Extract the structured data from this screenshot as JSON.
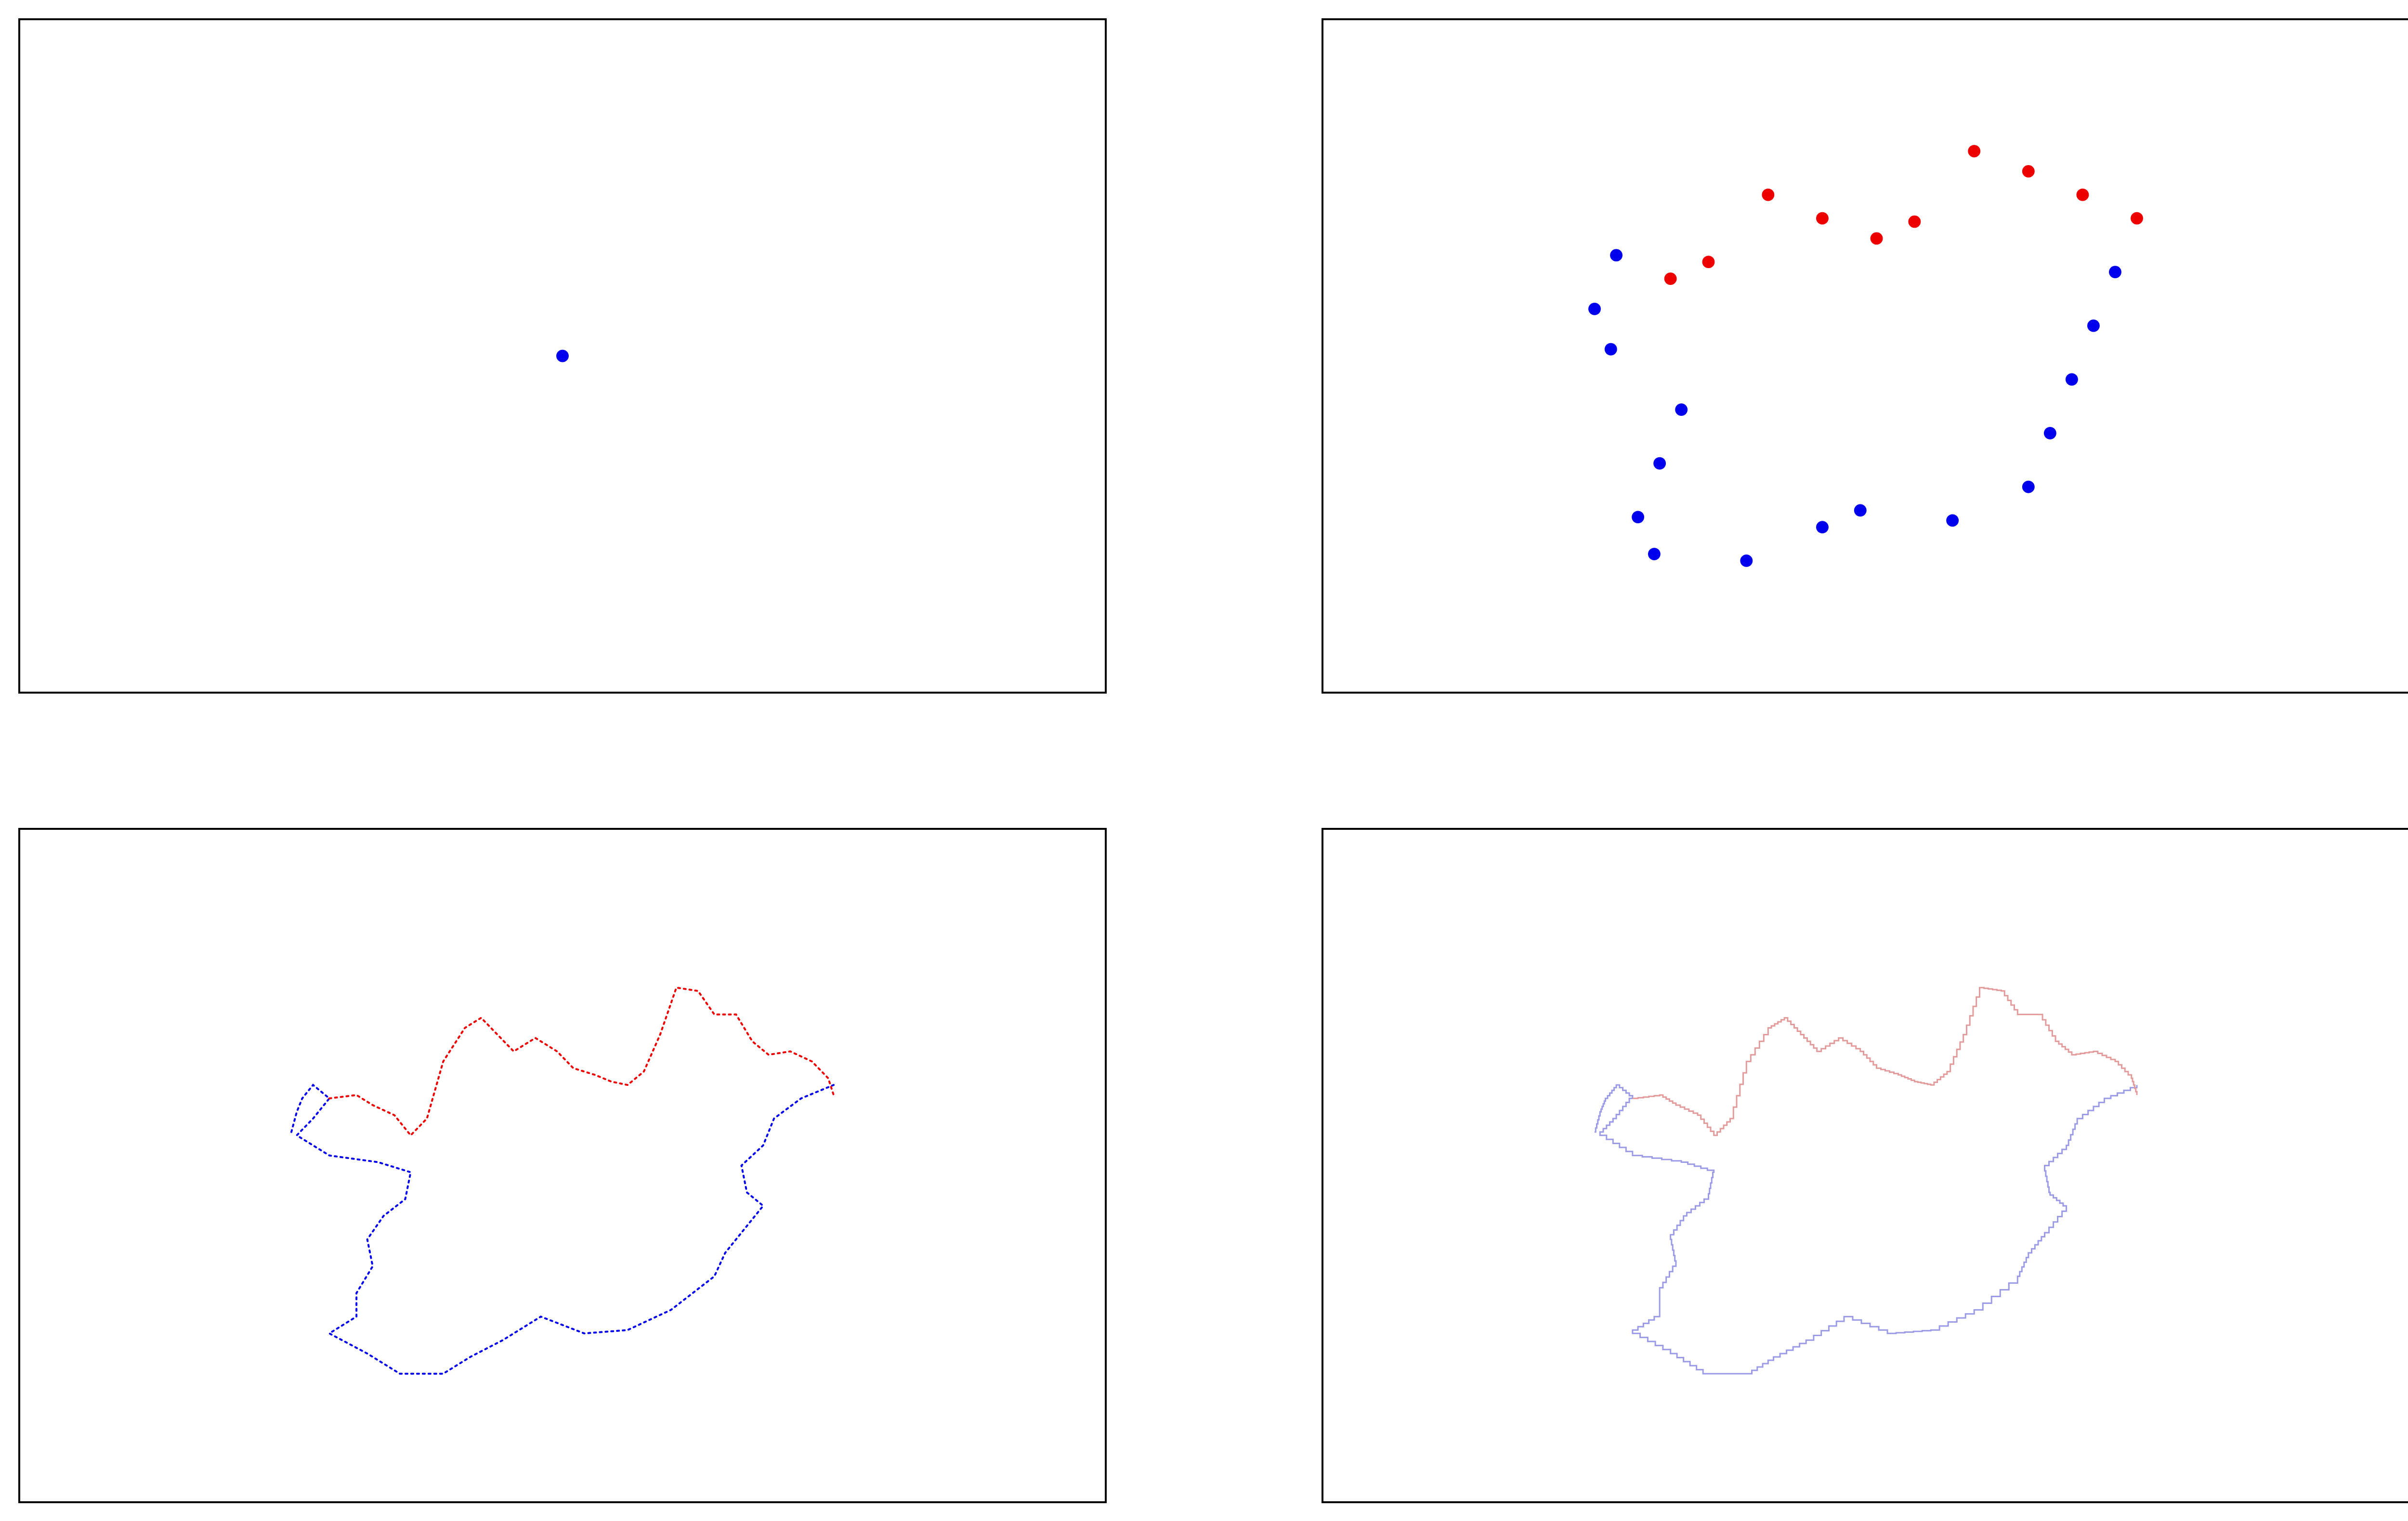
{
  "colors": {
    "blue": "#0000ee",
    "red": "#ee0000",
    "blue_light": "#9a9ae6",
    "red_light": "#e39a9a",
    "frame": "#000000"
  },
  "chart_data": [
    {
      "type": "scatter",
      "xlim": [
        0,
        1
      ],
      "ylim": [
        0,
        1
      ],
      "grid": false,
      "axes_ticks": false,
      "series": [
        {
          "color": "blue",
          "points": [
            [
              0.5,
              0.5
            ]
          ]
        }
      ]
    },
    {
      "type": "scatter",
      "xlim": [
        0,
        1
      ],
      "ylim": [
        0,
        1
      ],
      "grid": false,
      "axes_ticks": false,
      "series": [
        {
          "color": "blue",
          "points": [
            [
              0.27,
              0.65
            ],
            [
              0.25,
              0.57
            ],
            [
              0.265,
              0.51
            ],
            [
              0.33,
              0.42
            ],
            [
              0.31,
              0.34
            ],
            [
              0.29,
              0.26
            ],
            [
              0.305,
              0.205
            ],
            [
              0.39,
              0.195
            ],
            [
              0.46,
              0.245
            ],
            [
              0.495,
              0.27
            ],
            [
              0.58,
              0.255
            ],
            [
              0.65,
              0.305
            ],
            [
              0.67,
              0.385
            ],
            [
              0.69,
              0.465
            ],
            [
              0.71,
              0.545
            ],
            [
              0.73,
              0.625
            ]
          ]
        },
        {
          "color": "red",
          "points": [
            [
              0.32,
              0.615
            ],
            [
              0.355,
              0.64
            ],
            [
              0.41,
              0.74
            ],
            [
              0.46,
              0.705
            ],
            [
              0.51,
              0.675
            ],
            [
              0.545,
              0.7
            ],
            [
              0.6,
              0.805
            ],
            [
              0.65,
              0.775
            ],
            [
              0.7,
              0.74
            ],
            [
              0.75,
              0.705
            ]
          ]
        }
      ]
    },
    {
      "type": "line",
      "style": "dotted",
      "xlim": [
        0,
        1
      ],
      "ylim": [
        0,
        1
      ],
      "grid": false,
      "axes_ticks": false,
      "series": [
        {
          "color": "blue",
          "points": [
            [
              0.25,
              0.55
            ],
            [
              0.255,
              0.58
            ],
            [
              0.26,
              0.6
            ],
            [
              0.27,
              0.62
            ],
            [
              0.285,
              0.6
            ],
            [
              0.27,
              0.57
            ],
            [
              0.255,
              0.545
            ],
            [
              0.285,
              0.515
            ],
            [
              0.33,
              0.505
            ],
            [
              0.36,
              0.49
            ],
            [
              0.355,
              0.45
            ],
            [
              0.335,
              0.425
            ],
            [
              0.32,
              0.39
            ],
            [
              0.325,
              0.35
            ],
            [
              0.31,
              0.31
            ],
            [
              0.31,
              0.275
            ],
            [
              0.285,
              0.25
            ],
            [
              0.32,
              0.22
            ],
            [
              0.35,
              0.19
            ],
            [
              0.39,
              0.19
            ],
            [
              0.415,
              0.215
            ],
            [
              0.445,
              0.24
            ],
            [
              0.48,
              0.275
            ],
            [
              0.52,
              0.25
            ],
            [
              0.56,
              0.255
            ],
            [
              0.6,
              0.285
            ],
            [
              0.64,
              0.335
            ],
            [
              0.65,
              0.37
            ],
            [
              0.665,
              0.4
            ],
            [
              0.685,
              0.44
            ],
            [
              0.67,
              0.46
            ],
            [
              0.665,
              0.5
            ],
            [
              0.685,
              0.53
            ],
            [
              0.695,
              0.57
            ],
            [
              0.72,
              0.6
            ],
            [
              0.75,
              0.62
            ]
          ]
        },
        {
          "color": "red",
          "points": [
            [
              0.285,
              0.6
            ],
            [
              0.31,
              0.605
            ],
            [
              0.325,
              0.59
            ],
            [
              0.345,
              0.575
            ],
            [
              0.36,
              0.545
            ],
            [
              0.375,
              0.57
            ],
            [
              0.39,
              0.655
            ],
            [
              0.41,
              0.705
            ],
            [
              0.425,
              0.72
            ],
            [
              0.44,
              0.695
            ],
            [
              0.455,
              0.67
            ],
            [
              0.475,
              0.69
            ],
            [
              0.495,
              0.67
            ],
            [
              0.51,
              0.645
            ],
            [
              0.53,
              0.635
            ],
            [
              0.545,
              0.625
            ],
            [
              0.56,
              0.62
            ],
            [
              0.575,
              0.64
            ],
            [
              0.59,
              0.695
            ],
            [
              0.605,
              0.765
            ],
            [
              0.625,
              0.76
            ],
            [
              0.64,
              0.725
            ],
            [
              0.66,
              0.725
            ],
            [
              0.675,
              0.685
            ],
            [
              0.69,
              0.665
            ],
            [
              0.71,
              0.67
            ],
            [
              0.73,
              0.655
            ],
            [
              0.745,
              0.63
            ],
            [
              0.75,
              0.605
            ]
          ]
        }
      ]
    },
    {
      "type": "line",
      "style": "step",
      "xlim": [
        0,
        1
      ],
      "ylim": [
        0,
        1
      ],
      "grid": false,
      "axes_ticks": false,
      "series": [
        {
          "color": "blue_light",
          "points": [
            [
              0.25,
              0.55
            ],
            [
              0.255,
              0.58
            ],
            [
              0.26,
              0.6
            ],
            [
              0.27,
              0.62
            ],
            [
              0.285,
              0.6
            ],
            [
              0.27,
              0.57
            ],
            [
              0.255,
              0.545
            ],
            [
              0.285,
              0.515
            ],
            [
              0.33,
              0.505
            ],
            [
              0.36,
              0.49
            ],
            [
              0.355,
              0.45
            ],
            [
              0.335,
              0.425
            ],
            [
              0.32,
              0.39
            ],
            [
              0.325,
              0.35
            ],
            [
              0.31,
              0.31
            ],
            [
              0.31,
              0.275
            ],
            [
              0.285,
              0.25
            ],
            [
              0.32,
              0.22
            ],
            [
              0.35,
              0.19
            ],
            [
              0.39,
              0.19
            ],
            [
              0.415,
              0.215
            ],
            [
              0.445,
              0.24
            ],
            [
              0.48,
              0.275
            ],
            [
              0.52,
              0.25
            ],
            [
              0.56,
              0.255
            ],
            [
              0.6,
              0.285
            ],
            [
              0.64,
              0.335
            ],
            [
              0.65,
              0.37
            ],
            [
              0.665,
              0.4
            ],
            [
              0.685,
              0.44
            ],
            [
              0.67,
              0.46
            ],
            [
              0.665,
              0.5
            ],
            [
              0.685,
              0.53
            ],
            [
              0.695,
              0.57
            ],
            [
              0.72,
              0.6
            ],
            [
              0.75,
              0.62
            ]
          ]
        },
        {
          "color": "red_light",
          "points": [
            [
              0.285,
              0.6
            ],
            [
              0.31,
              0.605
            ],
            [
              0.325,
              0.59
            ],
            [
              0.345,
              0.575
            ],
            [
              0.36,
              0.545
            ],
            [
              0.375,
              0.57
            ],
            [
              0.39,
              0.655
            ],
            [
              0.41,
              0.705
            ],
            [
              0.425,
              0.72
            ],
            [
              0.44,
              0.695
            ],
            [
              0.455,
              0.67
            ],
            [
              0.475,
              0.69
            ],
            [
              0.495,
              0.67
            ],
            [
              0.51,
              0.645
            ],
            [
              0.53,
              0.635
            ],
            [
              0.545,
              0.625
            ],
            [
              0.56,
              0.62
            ],
            [
              0.575,
              0.64
            ],
            [
              0.59,
              0.695
            ],
            [
              0.605,
              0.765
            ],
            [
              0.625,
              0.76
            ],
            [
              0.64,
              0.725
            ],
            [
              0.66,
              0.725
            ],
            [
              0.675,
              0.685
            ],
            [
              0.69,
              0.665
            ],
            [
              0.71,
              0.67
            ],
            [
              0.73,
              0.655
            ],
            [
              0.745,
              0.63
            ],
            [
              0.75,
              0.605
            ]
          ]
        }
      ]
    }
  ]
}
